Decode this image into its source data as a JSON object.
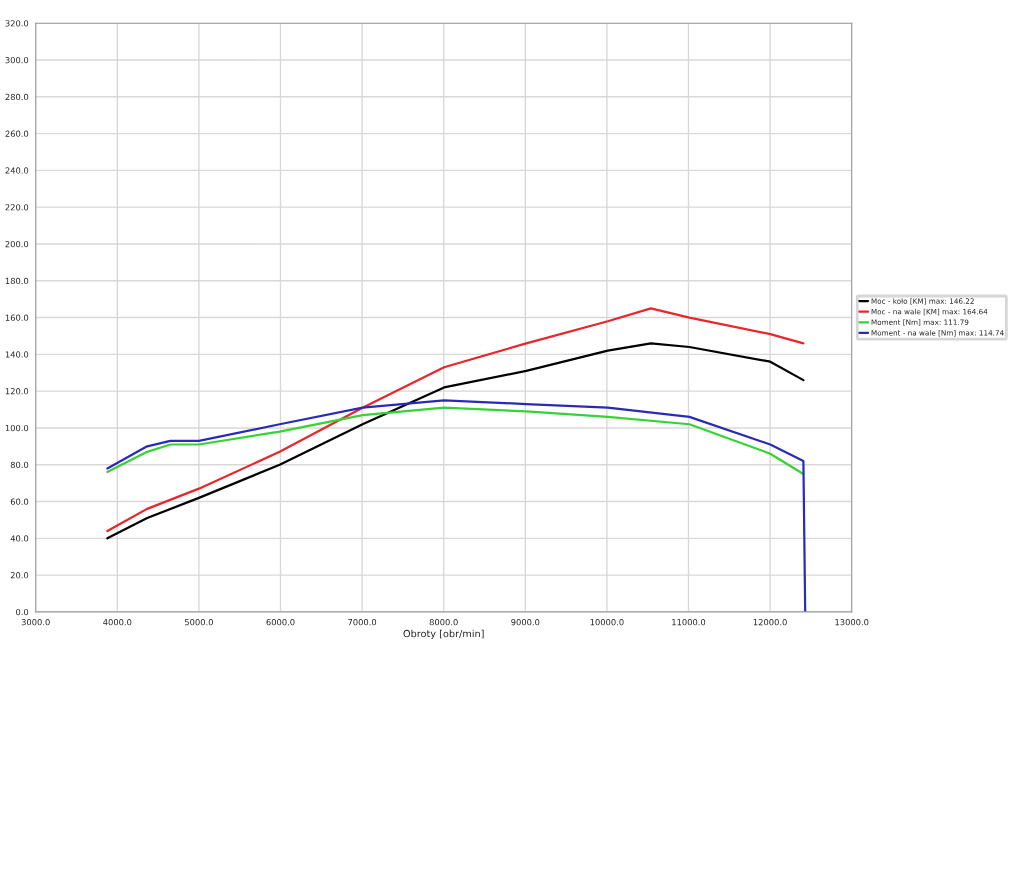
{
  "chart_data": {
    "type": "line",
    "xlabel": "Obroty [obr/min]",
    "xlim": [
      3000,
      13000
    ],
    "xticks": [
      {
        "value": 3000,
        "label": "3000.0"
      },
      {
        "value": 4000,
        "label": "4000.0"
      },
      {
        "value": 5000,
        "label": "5000.0"
      },
      {
        "value": 6000,
        "label": "6000.0"
      },
      {
        "value": 7000,
        "label": "7000.0"
      },
      {
        "value": 8000,
        "label": "8000.0"
      },
      {
        "value": 9000,
        "label": "9000.0"
      },
      {
        "value": 10000,
        "label": "10000.0"
      },
      {
        "value": 11000,
        "label": "11000.0"
      },
      {
        "value": 12000,
        "label": "12000.0"
      },
      {
        "value": 13000,
        "label": "13000.0"
      }
    ],
    "ylim": [
      0,
      320
    ],
    "yticks": [
      {
        "value": 0,
        "label": "0.0"
      },
      {
        "value": 20,
        "label": "20.0"
      },
      {
        "value": 40,
        "label": "40.0"
      },
      {
        "value": 60,
        "label": "60.0"
      },
      {
        "value": 80,
        "label": "80.0"
      },
      {
        "value": 100,
        "label": "100.0"
      },
      {
        "value": 120,
        "label": "120.0"
      },
      {
        "value": 140,
        "label": "140.0"
      },
      {
        "value": 160,
        "label": "160.0"
      },
      {
        "value": 180,
        "label": "180.0"
      },
      {
        "value": 200,
        "label": "200.0"
      },
      {
        "value": 220,
        "label": "220.0"
      },
      {
        "value": 240,
        "label": "240.0"
      },
      {
        "value": 260,
        "label": "260.0"
      },
      {
        "value": 280,
        "label": "280.0"
      },
      {
        "value": 300,
        "label": "300.0"
      },
      {
        "value": 320,
        "label": "320.0"
      }
    ],
    "grid": true,
    "legend": "right",
    "marker": "none",
    "line_style": "solid",
    "series": [
      {
        "name": "Moc - koło [KM] max: 146.22",
        "color": "#000000",
        "x": [
          3878,
          4366,
          5000,
          5990,
          7006,
          8005,
          9012,
          10011,
          10539,
          11011,
          12002,
          12408
        ],
        "values": [
          40,
          51,
          62,
          80,
          102,
          122,
          131,
          142,
          146,
          144,
          136,
          126
        ]
      },
      {
        "name": "Moc - na wale [KM] max: 164.64",
        "color": "#e8262b",
        "x": [
          3878,
          4366,
          5000,
          5990,
          7006,
          8005,
          9012,
          10011,
          10539,
          11011,
          12002,
          12408
        ],
        "values": [
          44,
          56,
          67,
          87,
          111,
          133,
          146,
          158,
          165,
          160,
          151,
          146
        ]
      },
      {
        "name": "Moment [Nm] max: 111.79",
        "color": "#35d335",
        "x": [
          3878,
          4366,
          4650,
          5000,
          5990,
          7006,
          8005,
          9012,
          10011,
          11011,
          12002,
          12408
        ],
        "values": [
          76,
          87,
          91,
          91,
          98,
          107,
          111,
          109,
          106,
          102,
          86,
          75
        ]
      },
      {
        "name": "Moment - na wale [Nm] max: 114.74",
        "color": "#2a2ab8",
        "x": [
          3878,
          4366,
          4650,
          5000,
          5990,
          7006,
          8005,
          9012,
          10011,
          11011,
          12002,
          12408,
          12430
        ],
        "values": [
          78,
          90,
          93,
          93,
          102,
          111,
          115,
          113,
          111,
          106,
          91,
          82,
          0
        ]
      }
    ]
  }
}
